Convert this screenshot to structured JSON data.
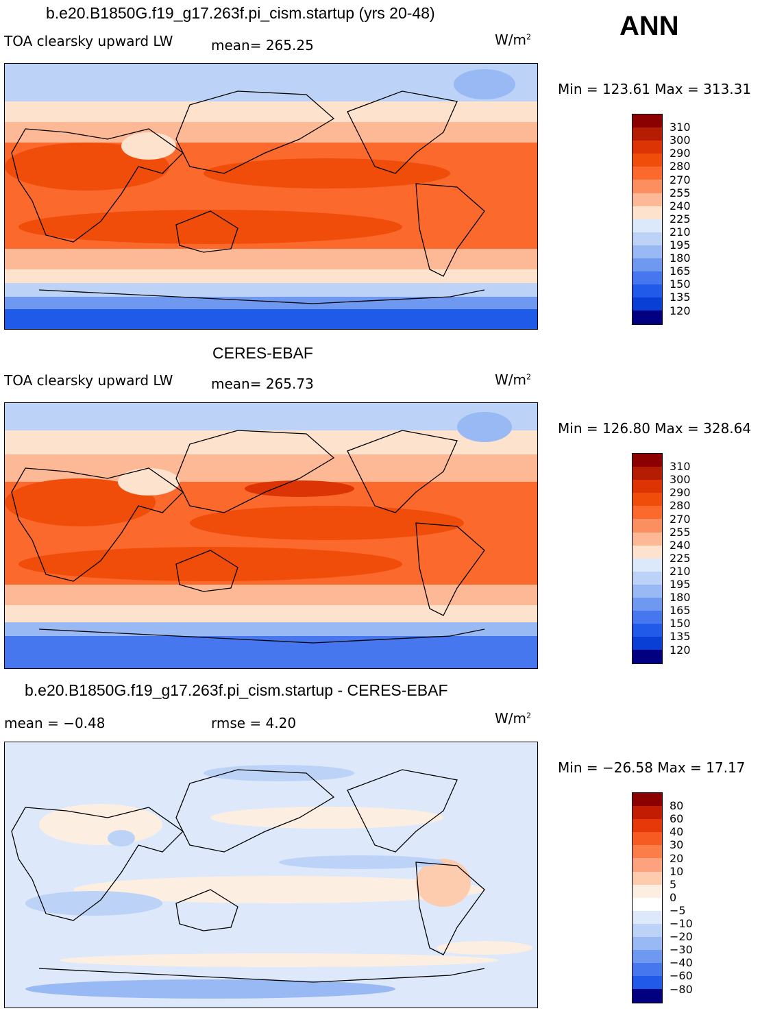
{
  "season": "ANN",
  "units": "W/m",
  "units_exp": "2",
  "panels": [
    {
      "title": "b.e20.B1850G.f19_g17.263f.pi_cism.startup (yrs 20-48)",
      "left_text": "TOA clearsky upward LW",
      "stat_text": "mean= 265.25",
      "minmax": "Min = 123.61 Max = 313.31",
      "colorbar_labels": [
        "310",
        "300",
        "290",
        "280",
        "270",
        "255",
        "240",
        "225",
        "210",
        "195",
        "180",
        "165",
        "150",
        "135",
        "120"
      ]
    },
    {
      "title": "CERES-EBAF",
      "left_text": "TOA clearsky upward LW",
      "stat_text": "mean= 265.73",
      "minmax": "Min = 126.80 Max = 328.64",
      "colorbar_labels": [
        "310",
        "300",
        "290",
        "280",
        "270",
        "255",
        "240",
        "225",
        "210",
        "195",
        "180",
        "165",
        "150",
        "135",
        "120"
      ]
    },
    {
      "title": "b.e20.B1850G.f19_g17.263f.pi_cism.startup - CERES-EBAF",
      "left_text": "mean =   −0.48",
      "stat_text": "rmse =    4.20",
      "minmax": "Min = −26.58 Max =  17.17",
      "colorbar_labels": [
        "80",
        "60",
        "40",
        "30",
        "20",
        "10",
        "5",
        "0",
        "−5",
        "−10",
        "−20",
        "−30",
        "−40",
        "−60",
        "−80"
      ]
    }
  ],
  "colors": {
    "abs_scale": [
      "#8b0000",
      "#b51d03",
      "#dc3404",
      "#f14d0a",
      "#fb6a2c",
      "#fc8f5f",
      "#fdb896",
      "#fde2ce",
      "#ffffff",
      "#dce9fb",
      "#bcd3f7",
      "#98b9f4",
      "#6f99f0",
      "#4677ef",
      "#1f5ae8",
      "#0a3fd6",
      "#032bb5",
      "#000080"
    ],
    "diff_scale": [
      "#8b0000",
      "#c21d02",
      "#e6390a",
      "#f65c22",
      "#fb7d47",
      "#fca27e",
      "#fdcbad",
      "#fdeee2",
      "#dde9fb",
      "#bcd3f7",
      "#98b9f4",
      "#6f99f0",
      "#4677ef",
      "#1f5ae8",
      "#0a3fd6",
      "#000080"
    ]
  }
}
